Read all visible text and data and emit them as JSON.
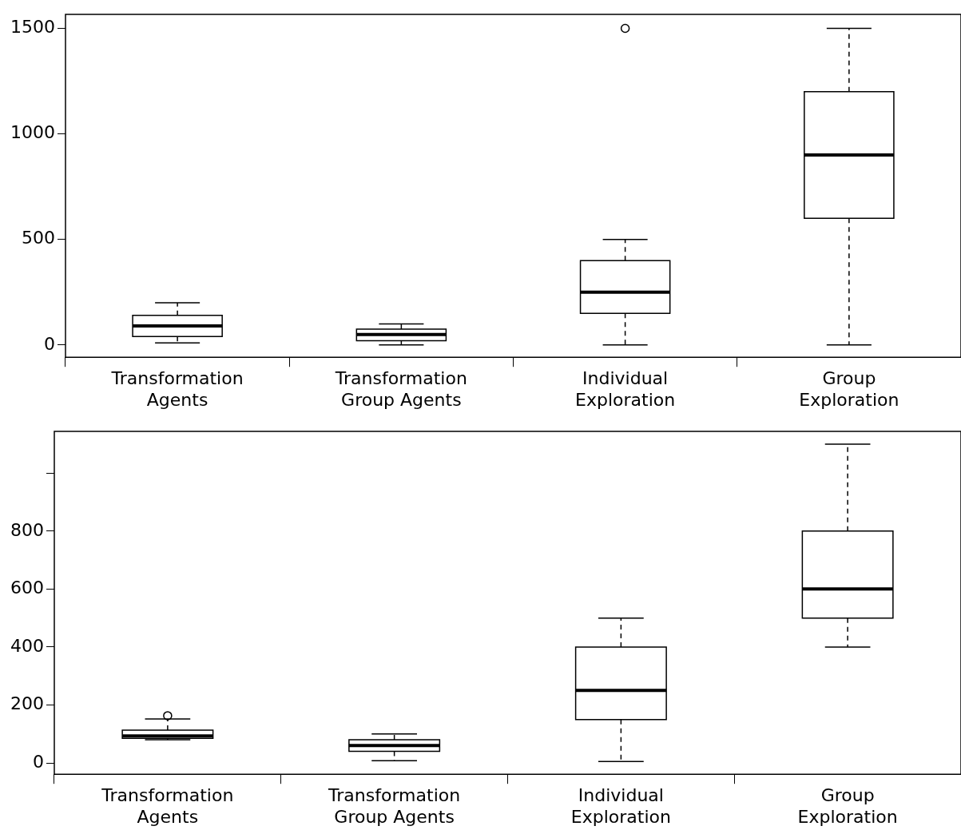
{
  "chart_data": [
    {
      "type": "box",
      "categories": [
        "Transformation Agents",
        "Transformation Group Agents",
        "Individual Exploration",
        "Group Exploration"
      ],
      "ylim": [
        -58,
        1566
      ],
      "yticks": [
        0,
        500,
        1000,
        1500
      ],
      "boxes": [
        {
          "low": 10,
          "q1": 40,
          "median": 90,
          "q3": 140,
          "high": 200
        },
        {
          "low": 0,
          "q1": 20,
          "median": 50,
          "q3": 75,
          "high": 100
        },
        {
          "low": 0,
          "q1": 150,
          "median": 250,
          "q3": 400,
          "high": 500,
          "outliers": [
            1500
          ]
        },
        {
          "low": 0,
          "q1": 600,
          "median": 900,
          "q3": 1200,
          "high": 1500
        }
      ]
    },
    {
      "type": "box",
      "categories": [
        "Transformation Agents",
        "Transformation Group Agents",
        "Individual Exploration",
        "Group Exploration"
      ],
      "ylim": [
        -39,
        1144
      ],
      "yticks": [
        0,
        200,
        400,
        600,
        800,
        {
          "value": 1000,
          "label": null
        }
      ],
      "boxes": [
        {
          "low": 80,
          "q1": 85,
          "median": 93,
          "q3": 113,
          "high": 152,
          "outliers": [
            163
          ]
        },
        {
          "low": 8,
          "q1": 40,
          "median": 60,
          "q3": 80,
          "high": 100
        },
        {
          "low": 5,
          "q1": 150,
          "median": 250,
          "q3": 400,
          "high": 500
        },
        {
          "low": 400,
          "q1": 500,
          "median": 600,
          "q3": 800,
          "high": 1100
        }
      ]
    }
  ]
}
